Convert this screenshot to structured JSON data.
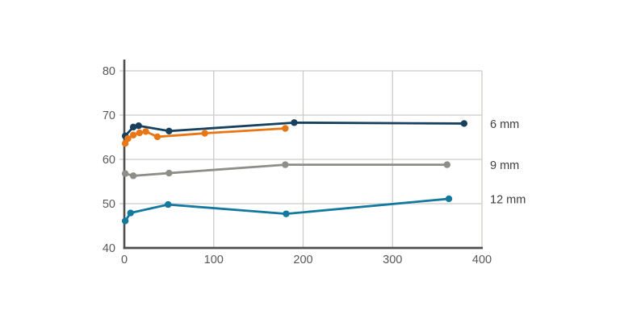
{
  "chart_data": {
    "type": "line",
    "title": "",
    "xlabel": "",
    "ylabel": "",
    "xlim": [
      0,
      400
    ],
    "ylim": [
      40,
      80
    ],
    "x_ticks": [
      0,
      100,
      200,
      300,
      400
    ],
    "y_ticks": [
      40,
      50,
      60,
      70,
      80
    ],
    "grid": true,
    "legend_position": "right-outside-line-end",
    "background_color": "#ffffff",
    "grid_color": "#cccbc7",
    "axis_color": "#4e4e4e",
    "tick_text_color": "#58585a",
    "label_text_color": "#3e3e40",
    "series": [
      {
        "name": "6 mm",
        "label": "6 mm",
        "color": "#16405e",
        "points": [
          [
            1,
            65.3
          ],
          [
            10,
            67.3
          ],
          [
            16,
            67.6
          ],
          [
            50,
            66.4
          ],
          [
            190,
            68.3
          ],
          [
            380,
            68.1
          ]
        ]
      },
      {
        "name": "orange-series",
        "label": "",
        "color": "#e97615",
        "points": [
          [
            1,
            63.6
          ],
          [
            4,
            64.7
          ],
          [
            10,
            65.5
          ],
          [
            17,
            66.0
          ],
          [
            24,
            66.3
          ],
          [
            37,
            65.1
          ],
          [
            90,
            65.9
          ],
          [
            180,
            67.0
          ]
        ]
      },
      {
        "name": "9 mm",
        "label": "9 mm",
        "color": "#8e8e88",
        "points": [
          [
            1,
            56.8
          ],
          [
            10,
            56.3
          ],
          [
            50,
            56.9
          ],
          [
            180,
            58.8
          ],
          [
            361,
            58.8
          ]
        ]
      },
      {
        "name": "12 mm",
        "label": "12 mm",
        "color": "#13799f",
        "points": [
          [
            1,
            46.1
          ],
          [
            7,
            47.9
          ],
          [
            49,
            49.8
          ],
          [
            181,
            47.7
          ],
          [
            363,
            51.1
          ]
        ]
      }
    ]
  }
}
